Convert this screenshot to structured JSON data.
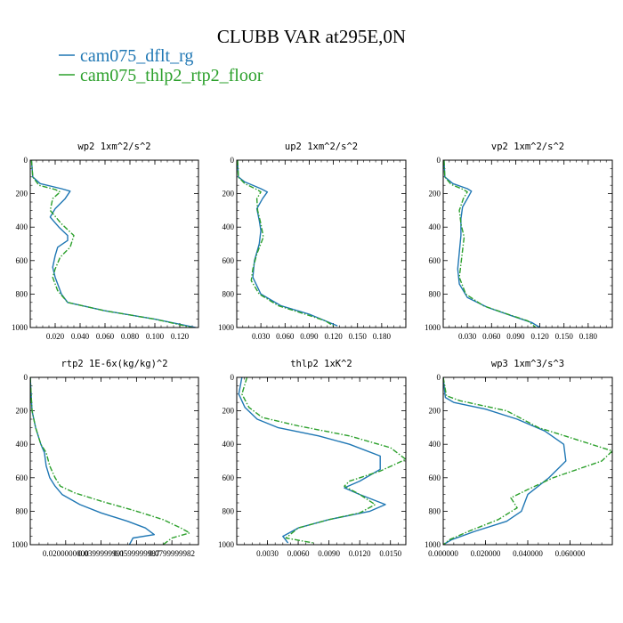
{
  "title": "CLUBB VAR at295E,0N",
  "legend": [
    {
      "label": "cam075_dflt_rg",
      "color": "#1f77b4",
      "dash": "solid"
    },
    {
      "label": "cam075_thlp2_rtp2_floor",
      "color": "#2ca02c",
      "dash": "dashdot"
    }
  ],
  "chart_data": [
    {
      "type": "line",
      "title": "wp2  1xm^2/s^2",
      "ylim": [
        0,
        1000
      ],
      "xlim": [
        0,
        0.135
      ],
      "yticks": [
        "0",
        "200",
        "400",
        "600",
        "800",
        "1000"
      ],
      "xticks": [
        {
          "v": 0.02,
          "label": "0.020"
        },
        {
          "v": 0.04,
          "label": "0.040"
        },
        {
          "v": 0.06,
          "label": "0.060"
        },
        {
          "v": 0.08,
          "label": "0.080"
        },
        {
          "v": 0.1,
          "label": "0.100"
        },
        {
          "v": 0.12,
          "label": "0.120"
        }
      ],
      "series": [
        {
          "name": "cam075_dflt_rg",
          "points": [
            [
              0.001,
              0
            ],
            [
              0.002,
              100
            ],
            [
              0.008,
              140
            ],
            [
              0.025,
              170
            ],
            [
              0.032,
              185
            ],
            [
              0.028,
              230
            ],
            [
              0.02,
              290
            ],
            [
              0.016,
              340
            ],
            [
              0.023,
              400
            ],
            [
              0.03,
              450
            ],
            [
              0.03,
              480
            ],
            [
              0.022,
              520
            ],
            [
              0.02,
              570
            ],
            [
              0.018,
              640
            ],
            [
              0.02,
              700
            ],
            [
              0.025,
              800
            ],
            [
              0.03,
              850
            ],
            [
              0.06,
              900
            ],
            [
              0.1,
              950
            ],
            [
              0.133,
              1000
            ]
          ]
        },
        {
          "name": "cam075_thlp2_rtp2_floor",
          "points": [
            [
              0.001,
              0
            ],
            [
              0.002,
              100
            ],
            [
              0.007,
              150
            ],
            [
              0.02,
              175
            ],
            [
              0.024,
              190
            ],
            [
              0.018,
              230
            ],
            [
              0.016,
              300
            ],
            [
              0.025,
              380
            ],
            [
              0.035,
              450
            ],
            [
              0.032,
              520
            ],
            [
              0.024,
              580
            ],
            [
              0.02,
              650
            ],
            [
              0.018,
              700
            ],
            [
              0.022,
              780
            ],
            [
              0.03,
              850
            ],
            [
              0.06,
              900
            ],
            [
              0.1,
              950
            ],
            [
              0.13,
              1000
            ]
          ]
        }
      ]
    },
    {
      "type": "line",
      "title": "up2  1xm^2/s^2",
      "ylim": [
        0,
        1000
      ],
      "xlim": [
        0,
        0.21
      ],
      "yticks": [
        "0",
        "200",
        "400",
        "600",
        "800",
        "1000"
      ],
      "xticks": [
        {
          "v": 0.03,
          "label": "0.030"
        },
        {
          "v": 0.06,
          "label": "0.060"
        },
        {
          "v": 0.09,
          "label": "0.090"
        },
        {
          "v": 0.12,
          "label": "0.120"
        },
        {
          "v": 0.15,
          "label": "0.150"
        },
        {
          "v": 0.18,
          "label": "0.180"
        }
      ],
      "series": [
        {
          "name": "cam075_dflt_rg",
          "points": [
            [
              0.001,
              0
            ],
            [
              0.002,
              100
            ],
            [
              0.01,
              130
            ],
            [
              0.03,
              170
            ],
            [
              0.038,
              190
            ],
            [
              0.032,
              230
            ],
            [
              0.025,
              290
            ],
            [
              0.028,
              360
            ],
            [
              0.03,
              420
            ],
            [
              0.028,
              500
            ],
            [
              0.022,
              600
            ],
            [
              0.02,
              700
            ],
            [
              0.03,
              800
            ],
            [
              0.055,
              870
            ],
            [
              0.09,
              920
            ],
            [
              0.11,
              960
            ],
            [
              0.125,
              990
            ]
          ]
        },
        {
          "name": "cam075_thlp2_rtp2_floor",
          "points": [
            [
              0.001,
              0
            ],
            [
              0.002,
              100
            ],
            [
              0.01,
              140
            ],
            [
              0.025,
              175
            ],
            [
              0.03,
              190
            ],
            [
              0.025,
              230
            ],
            [
              0.026,
              300
            ],
            [
              0.03,
              380
            ],
            [
              0.033,
              460
            ],
            [
              0.025,
              560
            ],
            [
              0.02,
              650
            ],
            [
              0.018,
              720
            ],
            [
              0.028,
              800
            ],
            [
              0.052,
              870
            ],
            [
              0.085,
              920
            ],
            [
              0.11,
              960
            ],
            [
              0.12,
              990
            ]
          ]
        }
      ]
    },
    {
      "type": "line",
      "title": "vp2  1xm^2/s^2",
      "ylim": [
        0,
        1000
      ],
      "xlim": [
        0,
        0.21
      ],
      "yticks": [
        "0",
        "200",
        "400",
        "600",
        "800",
        "1000"
      ],
      "xticks": [
        {
          "v": 0.03,
          "label": "0.030"
        },
        {
          "v": 0.06,
          "label": "0.060"
        },
        {
          "v": 0.09,
          "label": "0.090"
        },
        {
          "v": 0.12,
          "label": "0.120"
        },
        {
          "v": 0.15,
          "label": "0.150"
        },
        {
          "v": 0.18,
          "label": "0.180"
        }
      ],
      "series": [
        {
          "name": "cam075_dflt_rg",
          "points": [
            [
              0.001,
              0
            ],
            [
              0.002,
              100
            ],
            [
              0.012,
              140
            ],
            [
              0.03,
              170
            ],
            [
              0.035,
              185
            ],
            [
              0.03,
              230
            ],
            [
              0.024,
              280
            ],
            [
              0.022,
              350
            ],
            [
              0.022,
              450
            ],
            [
              0.02,
              550
            ],
            [
              0.018,
              650
            ],
            [
              0.02,
              740
            ],
            [
              0.03,
              820
            ],
            [
              0.055,
              880
            ],
            [
              0.085,
              930
            ],
            [
              0.11,
              970
            ],
            [
              0.12,
              1000
            ]
          ]
        },
        {
          "name": "cam075_thlp2_rtp2_floor",
          "points": [
            [
              0.001,
              0
            ],
            [
              0.002,
              100
            ],
            [
              0.01,
              145
            ],
            [
              0.025,
              175
            ],
            [
              0.03,
              190
            ],
            [
              0.025,
              230
            ],
            [
              0.02,
              300
            ],
            [
              0.022,
              380
            ],
            [
              0.026,
              460
            ],
            [
              0.024,
              540
            ],
            [
              0.022,
              620
            ],
            [
              0.02,
              700
            ],
            [
              0.028,
              800
            ],
            [
              0.05,
              870
            ],
            [
              0.08,
              920
            ],
            [
              0.105,
              960
            ],
            [
              0.115,
              1000
            ]
          ]
        }
      ]
    },
    {
      "type": "line",
      "title": "rtp2  1E-6x(kg/kg)^2",
      "ylim": [
        0,
        1000
      ],
      "xlim": [
        0,
        0.095
      ],
      "yticks": [
        "0",
        "200",
        "400",
        "600",
        "800",
        "1000"
      ],
      "xticks": [
        {
          "v": 0.02,
          "label": "0.0200000000"
        },
        {
          "v": 0.04,
          "label": "0.0399999991"
        },
        {
          "v": 0.06,
          "label": "0.0599999987"
        },
        {
          "v": 0.08,
          "label": "0.0799999982"
        }
      ],
      "series": [
        {
          "name": "cam075_dflt_rg",
          "points": [
            [
              0.0,
              0
            ],
            [
              0.001,
              200
            ],
            [
              0.003,
              300
            ],
            [
              0.006,
              400
            ],
            [
              0.008,
              450
            ],
            [
              0.009,
              530
            ],
            [
              0.011,
              600
            ],
            [
              0.014,
              650
            ],
            [
              0.018,
              700
            ],
            [
              0.028,
              760
            ],
            [
              0.04,
              810
            ],
            [
              0.055,
              860
            ],
            [
              0.065,
              900
            ],
            [
              0.07,
              940
            ],
            [
              0.058,
              960
            ],
            [
              0.056,
              1000
            ]
          ]
        },
        {
          "name": "cam075_thlp2_rtp2_floor",
          "points": [
            [
              0.0,
              0
            ],
            [
              0.001,
              200
            ],
            [
              0.003,
              300
            ],
            [
              0.006,
              400
            ],
            [
              0.009,
              450
            ],
            [
              0.011,
              530
            ],
            [
              0.014,
              600
            ],
            [
              0.017,
              650
            ],
            [
              0.025,
              690
            ],
            [
              0.04,
              740
            ],
            [
              0.06,
              800
            ],
            [
              0.075,
              850
            ],
            [
              0.085,
              900
            ],
            [
              0.09,
              930
            ],
            [
              0.08,
              960
            ],
            [
              0.075,
              1000
            ]
          ]
        }
      ]
    },
    {
      "type": "line",
      "title": "thlp2  1xK^2",
      "ylim": [
        0,
        1000
      ],
      "xlim": [
        0,
        0.0165
      ],
      "yticks": [
        "0",
        "200",
        "400",
        "600",
        "800",
        "1000"
      ],
      "xticks": [
        {
          "v": 0.003,
          "label": "0.0030"
        },
        {
          "v": 0.006,
          "label": "0.0060"
        },
        {
          "v": 0.009,
          "label": "0.0090"
        },
        {
          "v": 0.012,
          "label": "0.0120"
        },
        {
          "v": 0.015,
          "label": "0.0150"
        }
      ],
      "series": [
        {
          "name": "cam075_dflt_rg",
          "points": [
            [
              0.0005,
              0
            ],
            [
              0.0002,
              100
            ],
            [
              0.0008,
              180
            ],
            [
              0.002,
              250
            ],
            [
              0.004,
              300
            ],
            [
              0.008,
              350
            ],
            [
              0.011,
              400
            ],
            [
              0.014,
              470
            ],
            [
              0.014,
              550
            ],
            [
              0.012,
              620
            ],
            [
              0.0105,
              660
            ],
            [
              0.012,
              700
            ],
            [
              0.0145,
              760
            ],
            [
              0.013,
              800
            ],
            [
              0.009,
              850
            ],
            [
              0.006,
              900
            ],
            [
              0.0045,
              950
            ],
            [
              0.005,
              990
            ]
          ]
        },
        {
          "name": "cam075_thlp2_rtp2_floor",
          "points": [
            [
              0.001,
              0
            ],
            [
              0.0005,
              100
            ],
            [
              0.0012,
              180
            ],
            [
              0.0025,
              240
            ],
            [
              0.006,
              290
            ],
            [
              0.011,
              350
            ],
            [
              0.015,
              420
            ],
            [
              0.0165,
              490
            ],
            [
              0.014,
              560
            ],
            [
              0.011,
              620
            ],
            [
              0.0105,
              650
            ],
            [
              0.012,
              700
            ],
            [
              0.0135,
              760
            ],
            [
              0.012,
              810
            ],
            [
              0.009,
              850
            ],
            [
              0.006,
              900
            ],
            [
              0.0048,
              960
            ],
            [
              0.0075,
              990
            ]
          ]
        }
      ]
    },
    {
      "type": "line",
      "title": "wp3  1xm^3/s^3",
      "ylim": [
        0,
        1000
      ],
      "xlim": [
        0,
        0.08
      ],
      "yticks": [
        "0",
        "200",
        "400",
        "600",
        "800",
        "1000"
      ],
      "xticks": [
        {
          "v": 0.0,
          "label": "0.000000"
        },
        {
          "v": 0.02,
          "label": "0.020000"
        },
        {
          "v": 0.04,
          "label": "0.040000"
        },
        {
          "v": 0.06,
          "label": "0.060000"
        }
      ],
      "series": [
        {
          "name": "cam075_dflt_rg",
          "points": [
            [
              0.0,
              0
            ],
            [
              0.001,
              120
            ],
            [
              0.005,
              150
            ],
            [
              0.02,
              190
            ],
            [
              0.035,
              250
            ],
            [
              0.048,
              320
            ],
            [
              0.057,
              400
            ],
            [
              0.058,
              500
            ],
            [
              0.05,
              600
            ],
            [
              0.04,
              700
            ],
            [
              0.037,
              800
            ],
            [
              0.03,
              860
            ],
            [
              0.015,
              920
            ],
            [
              0.004,
              970
            ],
            [
              0.0,
              1000
            ]
          ]
        },
        {
          "name": "cam075_thlp2_rtp2_floor",
          "points": [
            [
              0.0,
              0
            ],
            [
              0.0015,
              110
            ],
            [
              0.008,
              140
            ],
            [
              0.03,
              200
            ],
            [
              0.045,
              300
            ],
            [
              0.065,
              380
            ],
            [
              0.08,
              440
            ],
            [
              0.075,
              500
            ],
            [
              0.052,
              600
            ],
            [
              0.04,
              670
            ],
            [
              0.032,
              720
            ],
            [
              0.035,
              780
            ],
            [
              0.026,
              850
            ],
            [
              0.012,
              920
            ],
            [
              0.003,
              970
            ],
            [
              0.0,
              1000
            ]
          ]
        }
      ]
    }
  ]
}
